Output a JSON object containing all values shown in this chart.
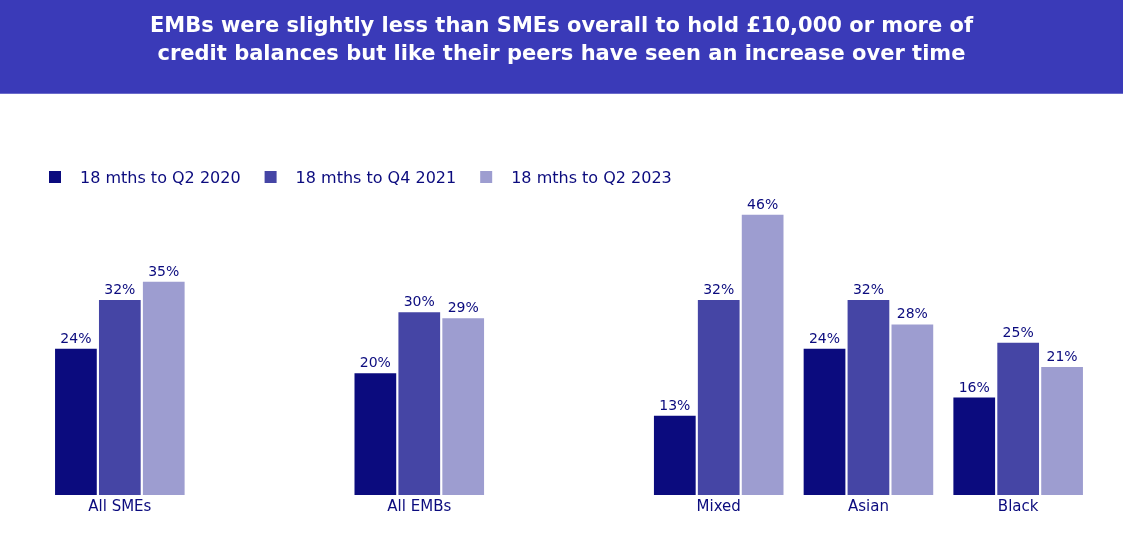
{
  "chart_data": {
    "type": "bar",
    "title": "EMBs were slightly less than SMEs overall to hold £10,000 or more of credit balances but like their peers have seen an increase over time",
    "categories": [
      "All SMEs",
      null,
      "All EMBs",
      null,
      "Mixed",
      "Asian",
      "Black"
    ],
    "series": [
      {
        "name": "18 mths to Q2 2020",
        "color": "#0b0b7e",
        "values": [
          24,
          null,
          20,
          null,
          13,
          24,
          16
        ],
        "value_labels": [
          "24%",
          null,
          "20%",
          null,
          "13%",
          "24%",
          "16%"
        ]
      },
      {
        "name": "18 mths to Q4 2021",
        "color": "#4545a5",
        "values": [
          32,
          null,
          30,
          null,
          32,
          32,
          25
        ],
        "value_labels": [
          "32%",
          null,
          "30%",
          null,
          "32%",
          "32%",
          "25%"
        ]
      },
      {
        "name": "18 mths to Q2 2023",
        "color": "#9d9dd0",
        "values": [
          35,
          null,
          29,
          null,
          46,
          28,
          21
        ],
        "value_labels": [
          "35%",
          null,
          "29%",
          null,
          "46%",
          "28%",
          "21%"
        ]
      }
    ],
    "legend": "top left",
    "tick_labels": "x"
  }
}
